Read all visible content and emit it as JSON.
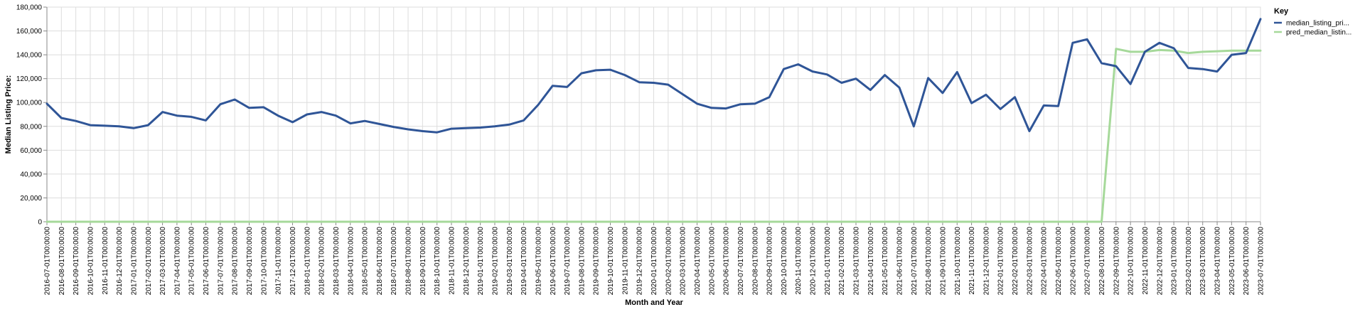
{
  "chart_data": {
    "type": "line",
    "title": "",
    "xlabel": "Month and Year",
    "ylabel": "Median Listing Price:",
    "ylim": [
      0,
      180000
    ],
    "y_ticks": [
      "0",
      "20,000",
      "40,000",
      "60,000",
      "80,000",
      "100,000",
      "120,000",
      "140,000",
      "160,000",
      "180,000"
    ],
    "grid": true,
    "legend": {
      "title": "Key",
      "placement": "top-right"
    },
    "categories": [
      "2016-07-01T00:00:00",
      "2016-08-01T00:00:00",
      "2016-09-01T00:00:00",
      "2016-10-01T00:00:00",
      "2016-11-01T00:00:00",
      "2016-12-01T00:00:00",
      "2017-01-01T00:00:00",
      "2017-02-01T00:00:00",
      "2017-03-01T00:00:00",
      "2017-04-01T00:00:00",
      "2017-05-01T00:00:00",
      "2017-06-01T00:00:00",
      "2017-07-01T00:00:00",
      "2017-08-01T00:00:00",
      "2017-09-01T00:00:00",
      "2017-10-01T00:00:00",
      "2017-11-01T00:00:00",
      "2017-12-01T00:00:00",
      "2018-01-01T00:00:00",
      "2018-02-01T00:00:00",
      "2018-03-01T00:00:00",
      "2018-04-01T00:00:00",
      "2018-05-01T00:00:00",
      "2018-06-01T00:00:00",
      "2018-07-01T00:00:00",
      "2018-08-01T00:00:00",
      "2018-09-01T00:00:00",
      "2018-10-01T00:00:00",
      "2018-11-01T00:00:00",
      "2018-12-01T00:00:00",
      "2019-01-01T00:00:00",
      "2019-02-01T00:00:00",
      "2019-03-01T00:00:00",
      "2019-04-01T00:00:00",
      "2019-05-01T00:00:00",
      "2019-06-01T00:00:00",
      "2019-07-01T00:00:00",
      "2019-08-01T00:00:00",
      "2019-09-01T00:00:00",
      "2019-10-01T00:00:00",
      "2019-11-01T00:00:00",
      "2019-12-01T00:00:00",
      "2020-01-01T00:00:00",
      "2020-02-01T00:00:00",
      "2020-03-01T00:00:00",
      "2020-04-01T00:00:00",
      "2020-05-01T00:00:00",
      "2020-06-01T00:00:00",
      "2020-07-01T00:00:00",
      "2020-08-01T00:00:00",
      "2020-09-01T00:00:00",
      "2020-10-01T00:00:00",
      "2020-11-01T00:00:00",
      "2020-12-01T00:00:00",
      "2021-01-01T00:00:00",
      "2021-02-01T00:00:00",
      "2021-03-01T00:00:00",
      "2021-04-01T00:00:00",
      "2021-05-01T00:00:00",
      "2021-06-01T00:00:00",
      "2021-07-01T00:00:00",
      "2021-08-01T00:00:00",
      "2021-09-01T00:00:00",
      "2021-10-01T00:00:00",
      "2021-11-01T00:00:00",
      "2021-12-01T00:00:00",
      "2022-01-01T00:00:00",
      "2022-02-01T00:00:00",
      "2022-03-01T00:00:00",
      "2022-04-01T00:00:00",
      "2022-05-01T00:00:00",
      "2022-06-01T00:00:00",
      "2022-07-01T00:00:00",
      "2022-08-01T00:00:00",
      "2022-09-01T00:00:00",
      "2022-10-01T00:00:00",
      "2022-11-01T00:00:00",
      "2022-12-01T00:00:00",
      "2023-01-01T00:00:00",
      "2023-02-01T00:00:00",
      "2023-03-01T00:00:00",
      "2023-04-01T00:00:00",
      "2023-05-01T00:00:00",
      "2023-06-01T00:00:00",
      "2023-07-01T00:00:00"
    ],
    "series": [
      {
        "name": "median_listing_pri...",
        "color": "#2f5597",
        "values": [
          99000,
          87000,
          84500,
          81000,
          80500,
          80000,
          78500,
          81000,
          92000,
          89000,
          88000,
          85000,
          98500,
          102500,
          95500,
          96000,
          89000,
          83500,
          90000,
          92000,
          89000,
          82500,
          84500,
          82000,
          79500,
          77500,
          76000,
          75000,
          78000,
          78500,
          79000,
          80000,
          81500,
          85000,
          98000,
          114000,
          113000,
          124500,
          127000,
          127500,
          123000,
          117000,
          116500,
          115000,
          107000,
          99000,
          95500,
          95000,
          98500,
          99000,
          104500,
          128000,
          132000,
          126000,
          123500,
          116500,
          120000,
          110500,
          123000,
          112500,
          80000,
          120500,
          108000,
          125500,
          99500,
          106500,
          94500,
          104500,
          76000,
          97500,
          97000,
          150000,
          153000,
          133000,
          130500,
          115500,
          142500,
          150000,
          145500,
          129000,
          128000,
          126000,
          140000,
          141500,
          170000
        ]
      },
      {
        "name": "pred_median_listin...",
        "color": "#a6d99a",
        "values": [
          0,
          0,
          0,
          0,
          0,
          0,
          0,
          0,
          0,
          0,
          0,
          0,
          0,
          0,
          0,
          0,
          0,
          0,
          0,
          0,
          0,
          0,
          0,
          0,
          0,
          0,
          0,
          0,
          0,
          0,
          0,
          0,
          0,
          0,
          0,
          0,
          0,
          0,
          0,
          0,
          0,
          0,
          0,
          0,
          0,
          0,
          0,
          0,
          0,
          0,
          0,
          0,
          0,
          0,
          0,
          0,
          0,
          0,
          0,
          0,
          0,
          0,
          0,
          0,
          0,
          0,
          0,
          0,
          0,
          0,
          0,
          0,
          0,
          0,
          145000,
          142500,
          142500,
          144000,
          143500,
          141500,
          142500,
          143000,
          143500,
          143500,
          143500
        ]
      }
    ]
  }
}
